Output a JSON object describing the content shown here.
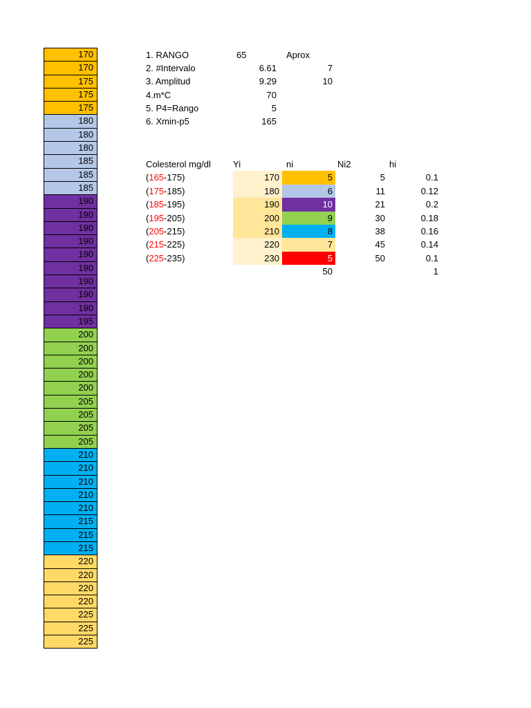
{
  "colors": {
    "orange": "#FFC000",
    "periwinkle": "#B4C7E7",
    "purple": "#7030A0",
    "green": "#92D050",
    "cyan": "#00B0F0",
    "yellow": "#FFD966",
    "pale_yellow": "#FFF2CC",
    "mid_yellow": "#FFE699",
    "red": "#FF0000"
  },
  "data_column": {
    "groups": [
      {
        "fill": "#FFC000",
        "text": "#000000",
        "values": [
          "170",
          "170",
          "175",
          "175",
          "175"
        ]
      },
      {
        "fill": "#B4C7E7",
        "text": "#000000",
        "values": [
          "180",
          "180",
          "180",
          "185",
          "185",
          "185"
        ]
      },
      {
        "fill": "#7030A0",
        "text": "#000000",
        "values": [
          "190",
          "190",
          "190",
          "190",
          "190",
          "190",
          "190",
          "190",
          "190",
          "195"
        ]
      },
      {
        "fill": "#92D050",
        "text": "#000000",
        "values": [
          "200",
          "200",
          "200",
          "200",
          "200",
          "205",
          "205",
          "205",
          "205"
        ]
      },
      {
        "fill": "#00B0F0",
        "text": "#000000",
        "values": [
          "210",
          "210",
          "210",
          "210",
          "210",
          "215",
          "215",
          "215"
        ]
      },
      {
        "fill": "#FFD966",
        "text": "#000000",
        "values": [
          "220",
          "220",
          "220",
          "220",
          "225",
          "225",
          "225"
        ]
      }
    ]
  },
  "calculations": {
    "rows": [
      {
        "label": "1. RANGO",
        "value": "65",
        "extra": "Aprox"
      },
      {
        "label": "2. #Intervalo",
        "value": "6.61",
        "extra": "7"
      },
      {
        "label": "3. Amplitud",
        "value": "9.29",
        "extra": "10"
      },
      {
        "label": "4.m*C",
        "value": "70",
        "extra": ""
      },
      {
        "label": "5. P4=Rango",
        "value": "5",
        "extra": ""
      },
      {
        "label": "6. Xmin-p5",
        "value": "165",
        "extra": ""
      }
    ]
  },
  "frequency_table": {
    "headers": {
      "interval": "Colesterol mg/dl",
      "yi": "Yi",
      "ni": "ni",
      "Ni2": "Ni2",
      "hi": "hi"
    },
    "rows": [
      {
        "interval_open": "(",
        "interval_low": "165",
        "interval_rest": "-175)",
        "yi": "170",
        "yi_fill": "#FFF2CC",
        "ni": "5",
        "ni_fill": "#FFC000",
        "ni_color": "#000000",
        "Ni2": "5",
        "hi": "0.1"
      },
      {
        "interval_open": "(",
        "interval_low": "175",
        "interval_rest": "-185)",
        "yi": "180",
        "yi_fill": "#FFF2CC",
        "ni": "6",
        "ni_fill": "#B4C7E7",
        "ni_color": "#000000",
        "Ni2": "11",
        "hi": "0.12"
      },
      {
        "interval_open": "(",
        "interval_low": "185",
        "interval_rest": "-195)",
        "yi": "190",
        "yi_fill": "#FFE699",
        "ni": "10",
        "ni_fill": "#7030A0",
        "ni_color": "#FFFFFF",
        "Ni2": "21",
        "hi": "0.2"
      },
      {
        "interval_open": "(",
        "interval_low": "195",
        "interval_rest": "-205)",
        "yi": "200",
        "yi_fill": "#FFE699",
        "ni": "9",
        "ni_fill": "#92D050",
        "ni_color": "#000000",
        "Ni2": "30",
        "hi": "0.18"
      },
      {
        "interval_open": "(",
        "interval_low": "205",
        "interval_rest": "-215)",
        "yi": "210",
        "yi_fill": "#FFE699",
        "ni": "8",
        "ni_fill": "#00B0F0",
        "ni_color": "#000000",
        "Ni2": "38",
        "hi": "0.16"
      },
      {
        "interval_open": "(",
        "interval_low": "215",
        "interval_rest": "-225)",
        "yi": "220",
        "yi_fill": "#FFF2CC",
        "ni": "7",
        "ni_fill": "#FFE699",
        "ni_color": "#000000",
        "Ni2": "45",
        "hi": "0.14"
      },
      {
        "interval_open": "(",
        "interval_low": "225",
        "interval_rest": "-235)",
        "yi": "230",
        "yi_fill": "#FFF2CC",
        "ni": "5",
        "ni_fill": "#FF0000",
        "ni_color": "#FFFFFF",
        "Ni2": "50",
        "hi": "0.1"
      }
    ],
    "total_ni": "50",
    "total_hi": "1"
  }
}
